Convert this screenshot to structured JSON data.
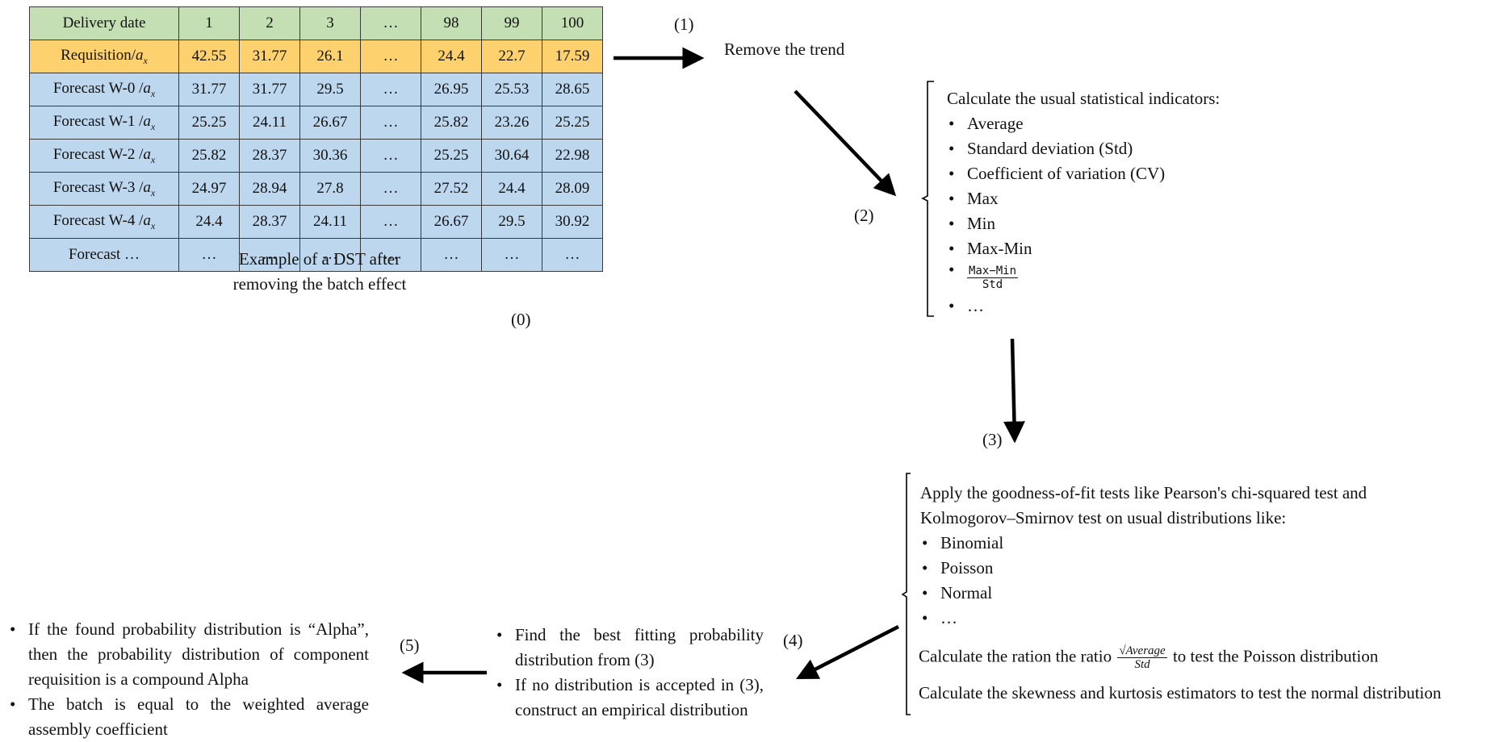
{
  "table": {
    "header_label": "Delivery date",
    "columns": [
      "1",
      "2",
      "3",
      "…",
      "98",
      "99",
      "100"
    ],
    "rows": [
      {
        "label": "Requisition/",
        "var": "a",
        "sub": "x",
        "values": [
          "42.55",
          "31.77",
          "26.1",
          "…",
          "24.4",
          "22.7",
          "17.59"
        ]
      },
      {
        "label": "Forecast W-0 /",
        "var": "a",
        "sub": "x",
        "values": [
          "31.77",
          "31.77",
          "29.5",
          "…",
          "26.95",
          "25.53",
          "28.65"
        ]
      },
      {
        "label": "Forecast W-1 /",
        "var": "a",
        "sub": "x",
        "values": [
          "25.25",
          "24.11",
          "26.67",
          "…",
          "25.82",
          "23.26",
          "25.25"
        ]
      },
      {
        "label": "Forecast W-2 /",
        "var": "a",
        "sub": "x",
        "values": [
          "25.82",
          "28.37",
          "30.36",
          "…",
          "25.25",
          "30.64",
          "22.98"
        ]
      },
      {
        "label": "Forecast W-3 /",
        "var": "a",
        "sub": "x",
        "values": [
          "24.97",
          "28.94",
          "27.8",
          "…",
          "27.52",
          "24.4",
          "28.09"
        ]
      },
      {
        "label": "Forecast W-4 /",
        "var": "a",
        "sub": "x",
        "values": [
          "24.4",
          "28.37",
          "24.11",
          "…",
          "26.67",
          "29.5",
          "30.92"
        ]
      },
      {
        "label": "Forecast …",
        "var": "",
        "sub": "",
        "values": [
          "…",
          "…",
          "…",
          "…",
          "…",
          "…",
          "…"
        ]
      }
    ],
    "caption_line1": "Example of a DST after",
    "caption_line2": "removing the batch effect"
  },
  "steps": {
    "s0": "(0)",
    "s1": "(1)",
    "s2": "(2)",
    "s3": "(3)",
    "s4": "(4)",
    "s5": "(5)"
  },
  "remove_trend": "Remove the trend",
  "indicators": {
    "title": "Calculate the usual statistical indicators:",
    "items": [
      "Average",
      "Standard deviation (Std)",
      "Coefficient of variation (CV)",
      "Max",
      "Min",
      "Max-Min"
    ],
    "fraction_num": "Max−Min",
    "fraction_den": "Std",
    "ellipsis": "…"
  },
  "tests": {
    "line1": "Apply the goodness-of-fit tests like Pearson's chi-squared test and",
    "line2": "Kolmogorov–Smirnov test on usual distributions like:",
    "items": [
      "Binomial",
      "Poisson",
      "Normal",
      "…"
    ],
    "ratio_before": "Calculate the ration the ratio",
    "ratio_num": "√Average",
    "ratio_den": "Std",
    "ratio_after": "to test the Poisson distribution",
    "skew_line": "Calculate the skewness and kurtosis estimators to test the normal distribution"
  },
  "fitting": {
    "item1": "Find the best fitting probability distribution from (3)",
    "item2": "If no distribution is accepted in (3), construct an empirical distribution"
  },
  "conclusion": {
    "item1": "If the found probability distribution is “Alpha”, then the probability distribution of component requisition is a compound Alpha",
    "item2": "The batch is equal to the weighted average assembly coefficient"
  }
}
